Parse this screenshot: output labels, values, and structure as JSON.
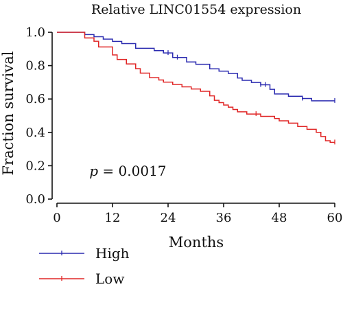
{
  "chart_data": {
    "type": "line",
    "title": "Relative LINC01554 expression",
    "xlabel": "Months",
    "ylabel": "Fraction survival",
    "xlim": [
      0,
      60
    ],
    "ylim": [
      0,
      1.0
    ],
    "x_ticks": [
      "0",
      "12",
      "24",
      "36",
      "48",
      "60"
    ],
    "y_ticks": [
      "0.0",
      "0.2",
      "0.4",
      "0.6",
      "0.8",
      "1.0"
    ],
    "grid": false,
    "legend_position": "bottom-left",
    "annotation": {
      "p_label": "p",
      "p_value": " = 0.0017",
      "x": 7,
      "y": 0.14
    },
    "series": [
      {
        "name": "High",
        "color": "#2b2bb0",
        "steps": [
          [
            0,
            1.0
          ],
          [
            6,
            0.986
          ],
          [
            8,
            0.973
          ],
          [
            10,
            0.959
          ],
          [
            12,
            0.945
          ],
          [
            14,
            0.932
          ],
          [
            17,
            0.904
          ],
          [
            21,
            0.89
          ],
          [
            23,
            0.876
          ],
          [
            25,
            0.849
          ],
          [
            28,
            0.822
          ],
          [
            30,
            0.808
          ],
          [
            33,
            0.781
          ],
          [
            35,
            0.767
          ],
          [
            37,
            0.753
          ],
          [
            39,
            0.726
          ],
          [
            40,
            0.712
          ],
          [
            42,
            0.699
          ],
          [
            44,
            0.685
          ],
          [
            46,
            0.658
          ],
          [
            47,
            0.63
          ],
          [
            50,
            0.616
          ],
          [
            53,
            0.603
          ],
          [
            55,
            0.589
          ],
          [
            60,
            0.589
          ]
        ],
        "censor_x": [
          24,
          26,
          44,
          45,
          53,
          60
        ]
      },
      {
        "name": "Low",
        "color": "#e02626",
        "steps": [
          [
            0,
            1.0
          ],
          [
            6,
            0.966
          ],
          [
            8,
            0.946
          ],
          [
            9,
            0.912
          ],
          [
            12,
            0.864
          ],
          [
            13,
            0.837
          ],
          [
            15,
            0.81
          ],
          [
            17,
            0.782
          ],
          [
            18,
            0.755
          ],
          [
            20,
            0.728
          ],
          [
            22,
            0.714
          ],
          [
            23,
            0.701
          ],
          [
            25,
            0.687
          ],
          [
            27,
            0.673
          ],
          [
            29,
            0.66
          ],
          [
            31,
            0.646
          ],
          [
            33,
            0.619
          ],
          [
            34,
            0.592
          ],
          [
            35,
            0.578
          ],
          [
            36,
            0.564
          ],
          [
            37,
            0.551
          ],
          [
            38,
            0.537
          ],
          [
            39,
            0.523
          ],
          [
            41,
            0.51
          ],
          [
            44,
            0.496
          ],
          [
            47,
            0.483
          ],
          [
            48,
            0.469
          ],
          [
            50,
            0.455
          ],
          [
            52,
            0.435
          ],
          [
            54,
            0.418
          ],
          [
            56,
            0.4
          ],
          [
            57,
            0.375
          ],
          [
            58,
            0.35
          ],
          [
            59,
            0.34
          ],
          [
            60,
            0.34
          ]
        ],
        "censor_x": [
          43,
          60
        ]
      }
    ]
  }
}
